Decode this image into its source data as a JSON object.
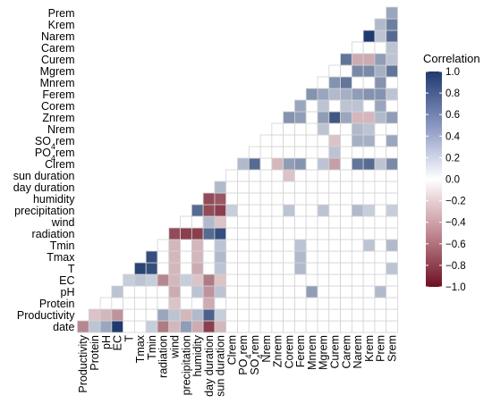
{
  "chart_data": {
    "type": "heatmap",
    "shape": "lower-triangle correlation matrix",
    "variables": [
      "date",
      "Productivity",
      "Protein",
      "pH",
      "EC",
      "T",
      "Tmax",
      "Tmin",
      "radiation",
      "wind",
      "precipitation",
      "humidity",
      "day duration",
      "sun duration",
      "Clrem",
      "PO4rem",
      "SO4rem",
      "Nrem",
      "Znrem",
      "Corem",
      "Ferem",
      "Mnrem",
      "Mgrem",
      "Curem",
      "Carem",
      "Narem",
      "Krem",
      "Prem",
      "Srem"
    ],
    "x_labels": [
      {
        "text": "Productivity"
      },
      {
        "text": "Protein"
      },
      {
        "text": "pH"
      },
      {
        "text": "EC"
      },
      {
        "text": "T"
      },
      {
        "text": "Tmax"
      },
      {
        "text": "Tmin"
      },
      {
        "text": "radiation"
      },
      {
        "text": "wind"
      },
      {
        "text": "precipitation"
      },
      {
        "text": "humidity"
      },
      {
        "text": "day duration"
      },
      {
        "text": "sun duration"
      },
      {
        "text": "Clrem"
      },
      {
        "text": "PO",
        "sub": "4",
        "post": "rem"
      },
      {
        "text": "SO",
        "sub": "4",
        "post": "rem"
      },
      {
        "text": "Nrem"
      },
      {
        "text": "Znrem"
      },
      {
        "text": "Corem"
      },
      {
        "text": "Ferem"
      },
      {
        "text": "Mnrem"
      },
      {
        "text": "Mgrem"
      },
      {
        "text": "Curem"
      },
      {
        "text": "Carem"
      },
      {
        "text": "Narem"
      },
      {
        "text": "Krem"
      },
      {
        "text": "Prem"
      },
      {
        "text": "Srem"
      }
    ],
    "y_labels": [
      {
        "text": "Prem"
      },
      {
        "text": "Krem"
      },
      {
        "text": "Narem"
      },
      {
        "text": "Carem"
      },
      {
        "text": "Curem"
      },
      {
        "text": "Mgrem"
      },
      {
        "text": "Mnrem"
      },
      {
        "text": "Ferem"
      },
      {
        "text": "Corem"
      },
      {
        "text": "Znrem"
      },
      {
        "text": "Nrem"
      },
      {
        "text": "SO",
        "sub": "4",
        "post": "rem"
      },
      {
        "text": "PO",
        "sub": "4",
        "post": "rem"
      },
      {
        "text": "Clrem"
      },
      {
        "text": "sun duration"
      },
      {
        "text": "day duration"
      },
      {
        "text": "humidity"
      },
      {
        "text": "precipitation"
      },
      {
        "text": "wind"
      },
      {
        "text": "radiation"
      },
      {
        "text": "Tmin"
      },
      {
        "text": "Tmax"
      },
      {
        "text": "T"
      },
      {
        "text": "EC"
      },
      {
        "text": "pH"
      },
      {
        "text": "Protein"
      },
      {
        "text": "Productivity"
      },
      {
        "text": "date"
      }
    ],
    "cells": [
      {
        "row": "date",
        "col": "Productivity",
        "value": -0.5
      },
      {
        "row": "date",
        "col": "Protein",
        "value": 0.3
      },
      {
        "row": "date",
        "col": "pH",
        "value": 0.45
      },
      {
        "row": "date",
        "col": "EC",
        "value": 1.0
      },
      {
        "row": "date",
        "col": "Tmin",
        "value": 0.25
      },
      {
        "row": "date",
        "col": "radiation",
        "value": -0.55
      },
      {
        "row": "date",
        "col": "wind",
        "value": -0.3
      },
      {
        "row": "date",
        "col": "precipitation",
        "value": 0.5
      },
      {
        "row": "date",
        "col": "humidity",
        "value": -0.35
      },
      {
        "row": "date",
        "col": "day duration",
        "value": -0.8
      },
      {
        "row": "date",
        "col": "sun duration",
        "value": -0.3
      },
      {
        "row": "Productivity",
        "col": "Protein",
        "value": -0.25
      },
      {
        "row": "Productivity",
        "col": "pH",
        "value": -0.3
      },
      {
        "row": "Productivity",
        "col": "EC",
        "value": -0.45
      },
      {
        "row": "Productivity",
        "col": "radiation",
        "value": 0.45
      },
      {
        "row": "Productivity",
        "col": "wind",
        "value": 0.3
      },
      {
        "row": "Productivity",
        "col": "precipitation",
        "value": -0.3
      },
      {
        "row": "Productivity",
        "col": "humidity",
        "value": 0.35
      },
      {
        "row": "Productivity",
        "col": "day duration",
        "value": 0.8
      },
      {
        "row": "Productivity",
        "col": "sun duration",
        "value": 0.25
      },
      {
        "row": "Protein",
        "col": "wind",
        "value": -0.25
      },
      {
        "row": "Protein",
        "col": "day duration",
        "value": -0.35
      },
      {
        "row": "pH",
        "col": "EC",
        "value": 0.3
      },
      {
        "row": "pH",
        "col": "wind",
        "value": -0.35
      },
      {
        "row": "pH",
        "col": "humidity",
        "value": 0.3
      },
      {
        "row": "pH",
        "col": "day duration",
        "value": -0.45
      },
      {
        "row": "pH",
        "col": "sun duration",
        "value": 0.3
      },
      {
        "row": "pH",
        "col": "Mnrem",
        "value": 0.5
      },
      {
        "row": "pH",
        "col": "Prem",
        "value": 0.35
      },
      {
        "row": "EC",
        "col": "T",
        "value": 0.25
      },
      {
        "row": "EC",
        "col": "Tmax",
        "value": 0.3
      },
      {
        "row": "EC",
        "col": "Tmin",
        "value": 0.25
      },
      {
        "row": "EC",
        "col": "radiation",
        "value": -0.5
      },
      {
        "row": "EC",
        "col": "wind",
        "value": -0.3
      },
      {
        "row": "EC",
        "col": "precipitation",
        "value": 0.25
      },
      {
        "row": "EC",
        "col": "humidity",
        "value": -0.25
      },
      {
        "row": "EC",
        "col": "day duration",
        "value": -0.55
      },
      {
        "row": "EC",
        "col": "sun duration",
        "value": -0.25
      },
      {
        "row": "T",
        "col": "Tmax",
        "value": 0.95
      },
      {
        "row": "T",
        "col": "Tmin",
        "value": 0.9
      },
      {
        "row": "T",
        "col": "wind",
        "value": -0.3
      },
      {
        "row": "T",
        "col": "humidity",
        "value": -0.35
      },
      {
        "row": "T",
        "col": "sun duration",
        "value": 0.3
      },
      {
        "row": "T",
        "col": "Ferem",
        "value": 0.35
      },
      {
        "row": "T",
        "col": "Srem",
        "value": 0.3
      },
      {
        "row": "Tmax",
        "col": "Tmin",
        "value": 0.9
      },
      {
        "row": "Tmax",
        "col": "wind",
        "value": -0.3
      },
      {
        "row": "Tmax",
        "col": "humidity",
        "value": -0.3
      },
      {
        "row": "Tmax",
        "col": "sun duration",
        "value": 0.35
      },
      {
        "row": "Tmax",
        "col": "Ferem",
        "value": 0.35
      },
      {
        "row": "Tmin",
        "col": "wind",
        "value": -0.3
      },
      {
        "row": "Tmin",
        "col": "humidity",
        "value": -0.3
      },
      {
        "row": "Tmin",
        "col": "sun duration",
        "value": 0.3
      },
      {
        "row": "Tmin",
        "col": "Ferem",
        "value": 0.3
      },
      {
        "row": "Tmin",
        "col": "Krem",
        "value": 0.3
      },
      {
        "row": "Tmin",
        "col": "Srem",
        "value": 0.35
      },
      {
        "row": "radiation",
        "col": "wind",
        "value": -0.75
      },
      {
        "row": "radiation",
        "col": "precipitation",
        "value": -0.8
      },
      {
        "row": "radiation",
        "col": "humidity",
        "value": -0.8
      },
      {
        "row": "radiation",
        "col": "day duration",
        "value": 0.75
      },
      {
        "row": "radiation",
        "col": "sun duration",
        "value": 0.9
      },
      {
        "row": "wind",
        "col": "day duration",
        "value": 0.35
      },
      {
        "row": "wind",
        "col": "sun duration",
        "value": -0.25
      },
      {
        "row": "precipitation",
        "col": "humidity",
        "value": 0.75
      },
      {
        "row": "precipitation",
        "col": "day duration",
        "value": -0.75
      },
      {
        "row": "precipitation",
        "col": "sun duration",
        "value": -0.8
      },
      {
        "row": "precipitation",
        "col": "Clrem",
        "value": 0.25
      },
      {
        "row": "precipitation",
        "col": "Corem",
        "value": 0.3
      },
      {
        "row": "precipitation",
        "col": "Mgrem",
        "value": 0.3
      },
      {
        "row": "precipitation",
        "col": "Narem",
        "value": 0.35
      },
      {
        "row": "precipitation",
        "col": "Krem",
        "value": 0.25
      },
      {
        "row": "precipitation",
        "col": "Srem",
        "value": 0.25
      },
      {
        "row": "humidity",
        "col": "day duration",
        "value": -0.75
      },
      {
        "row": "humidity",
        "col": "sun duration",
        "value": -0.7
      },
      {
        "row": "day duration",
        "col": "sun duration",
        "value": 0.35
      },
      {
        "row": "sun duration",
        "col": "Corem",
        "value": -0.25
      },
      {
        "row": "Clrem",
        "col": "PO4rem",
        "value": 0.35
      },
      {
        "row": "Clrem",
        "col": "SO4rem",
        "value": 0.75
      },
      {
        "row": "Clrem",
        "col": "Znrem",
        "value": -0.3
      },
      {
        "row": "Clrem",
        "col": "Corem",
        "value": 0.5
      },
      {
        "row": "Clrem",
        "col": "Ferem",
        "value": 0.55
      },
      {
        "row": "Clrem",
        "col": "Mgrem",
        "value": 0.3
      },
      {
        "row": "Clrem",
        "col": "Curem",
        "value": -0.4
      },
      {
        "row": "Clrem",
        "col": "Narem",
        "value": 0.7
      },
      {
        "row": "Clrem",
        "col": "Krem",
        "value": 0.75
      },
      {
        "row": "Clrem",
        "col": "Prem",
        "value": 0.3
      },
      {
        "row": "Clrem",
        "col": "Srem",
        "value": 0.6
      },
      {
        "row": "PO4rem",
        "col": "Curem",
        "value": 0.3
      },
      {
        "row": "SO4rem",
        "col": "Curem",
        "value": -0.25
      },
      {
        "row": "SO4rem",
        "col": "Narem",
        "value": 0.4
      },
      {
        "row": "SO4rem",
        "col": "Krem",
        "value": 0.4
      },
      {
        "row": "SO4rem",
        "col": "Srem",
        "value": 0.45
      },
      {
        "row": "Nrem",
        "col": "Mgrem",
        "value": 0.3
      },
      {
        "row": "Nrem",
        "col": "Narem",
        "value": 0.35
      },
      {
        "row": "Nrem",
        "col": "Krem",
        "value": 0.3
      },
      {
        "row": "Znrem",
        "col": "Corem",
        "value": 0.55
      },
      {
        "row": "Znrem",
        "col": "Ferem",
        "value": 0.5
      },
      {
        "row": "Znrem",
        "col": "Mgrem",
        "value": 0.5
      },
      {
        "row": "Znrem",
        "col": "Curem",
        "value": 0.85
      },
      {
        "row": "Znrem",
        "col": "Carem",
        "value": 0.45
      },
      {
        "row": "Znrem",
        "col": "Narem",
        "value": -0.3
      },
      {
        "row": "Znrem",
        "col": "Krem",
        "value": -0.3
      },
      {
        "row": "Znrem",
        "col": "Prem",
        "value": 0.35
      },
      {
        "row": "Znrem",
        "col": "Srem",
        "value": 0.5
      },
      {
        "row": "Corem",
        "col": "Ferem",
        "value": 0.45
      },
      {
        "row": "Corem",
        "col": "Mgrem",
        "value": 0.3
      },
      {
        "row": "Corem",
        "col": "Carem",
        "value": 0.3
      },
      {
        "row": "Corem",
        "col": "Narem",
        "value": 0.3
      },
      {
        "row": "Corem",
        "col": "Prem",
        "value": 0.45
      },
      {
        "row": "Ferem",
        "col": "Mnrem",
        "value": 0.55
      },
      {
        "row": "Ferem",
        "col": "Mgrem",
        "value": 0.45
      },
      {
        "row": "Ferem",
        "col": "Curem",
        "value": 0.35
      },
      {
        "row": "Ferem",
        "col": "Carem",
        "value": 0.4
      },
      {
        "row": "Ferem",
        "col": "Narem",
        "value": 0.5
      },
      {
        "row": "Ferem",
        "col": "Krem",
        "value": 0.55
      },
      {
        "row": "Ferem",
        "col": "Prem",
        "value": 0.55
      },
      {
        "row": "Ferem",
        "col": "Srem",
        "value": 0.3
      },
      {
        "row": "Mnrem",
        "col": "Curem",
        "value": 0.55
      },
      {
        "row": "Mnrem",
        "col": "Carem",
        "value": 0.7
      },
      {
        "row": "Mnrem",
        "col": "Prem",
        "value": 0.55
      },
      {
        "row": "Mgrem",
        "col": "Narem",
        "value": 0.6
      },
      {
        "row": "Mgrem",
        "col": "Krem",
        "value": 0.6
      },
      {
        "row": "Mgrem",
        "col": "Prem",
        "value": 0.4
      },
      {
        "row": "Mgrem",
        "col": "Srem",
        "value": 0.7
      },
      {
        "row": "Curem",
        "col": "Carem",
        "value": 0.7
      },
      {
        "row": "Curem",
        "col": "Narem",
        "value": -0.35
      },
      {
        "row": "Curem",
        "col": "Krem",
        "value": -0.35
      },
      {
        "row": "Curem",
        "col": "Prem",
        "value": 0.5
      },
      {
        "row": "Curem",
        "col": "Srem",
        "value": 0.3
      },
      {
        "row": "Carem",
        "col": "Srem",
        "value": 0.3
      },
      {
        "row": "Narem",
        "col": "Krem",
        "value": 1.0
      },
      {
        "row": "Narem",
        "col": "Prem",
        "value": 0.3
      },
      {
        "row": "Narem",
        "col": "Srem",
        "value": 0.75
      },
      {
        "row": "Krem",
        "col": "Prem",
        "value": 0.35
      },
      {
        "row": "Krem",
        "col": "Srem",
        "value": 0.65
      },
      {
        "row": "Prem",
        "col": "Srem",
        "value": 0.45
      }
    ],
    "legend": {
      "title": "Correlation",
      "placement": "right",
      "range": [
        -1.0,
        1.0
      ],
      "ticks": [
        "1.0",
        "0.8",
        "0.6",
        "0.4",
        "0.2",
        "0.0",
        "−0.2",
        "−0.4",
        "−0.6",
        "−0.8",
        "−1.0"
      ],
      "tick_values": [
        1.0,
        0.8,
        0.6,
        0.4,
        0.2,
        0.0,
        -0.2,
        -0.4,
        -0.6,
        -0.8,
        -1.0
      ]
    },
    "colors": {
      "positive": "#1f3a6e",
      "zero": "#ffffff",
      "negative": "#6e0f22",
      "grid": "#d3d3d3"
    }
  }
}
